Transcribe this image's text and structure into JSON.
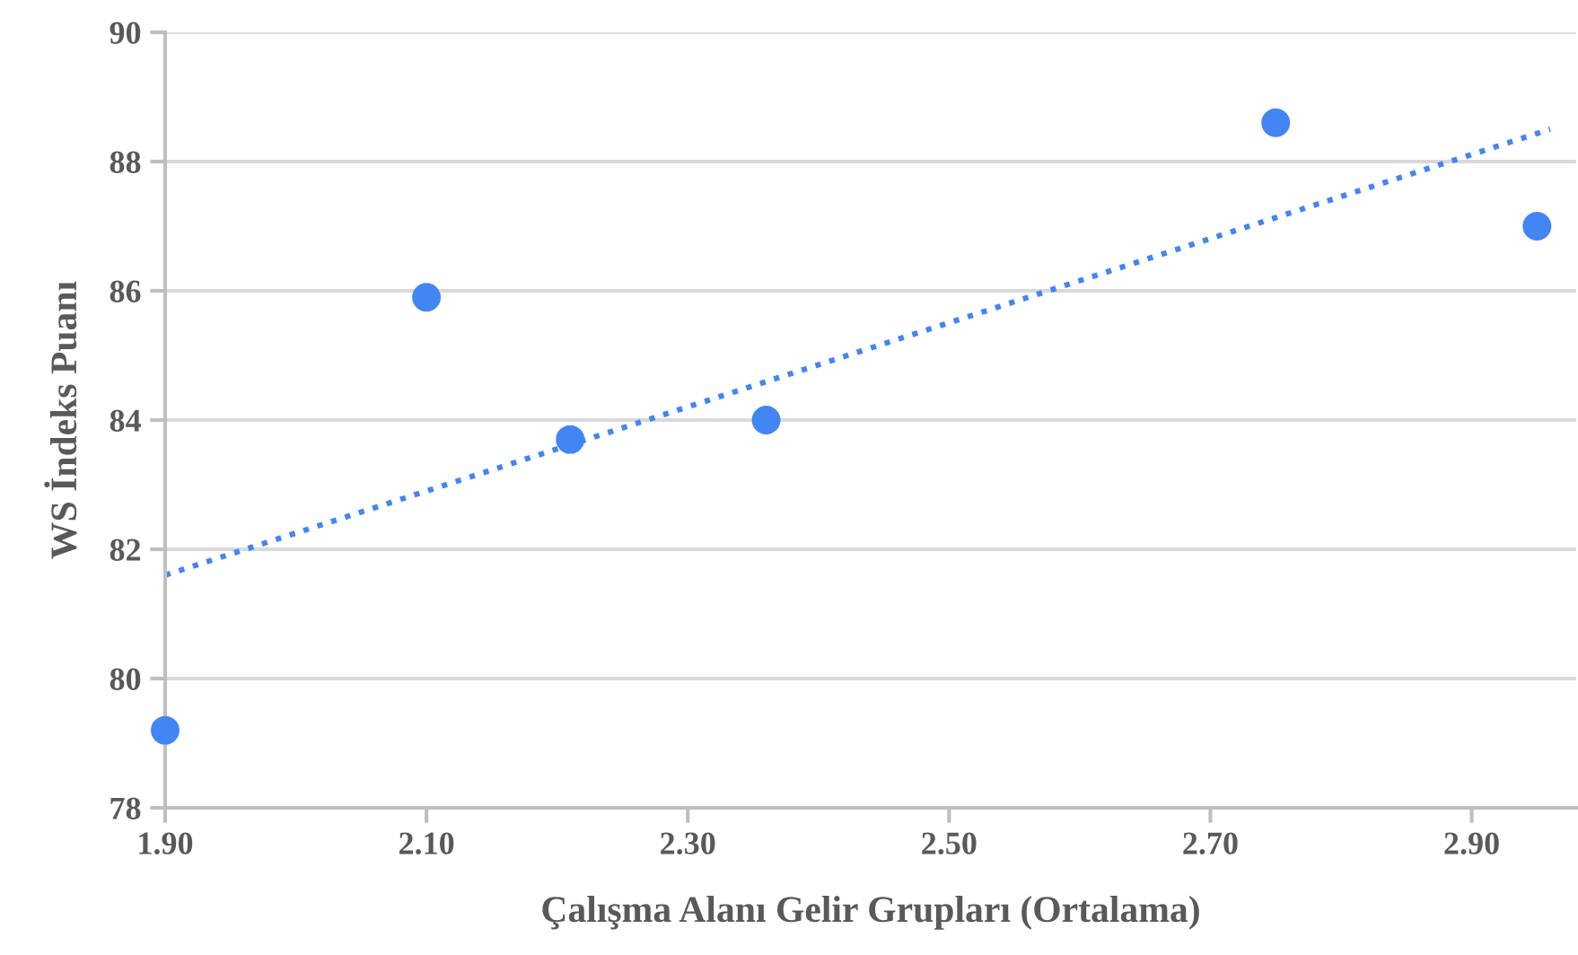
{
  "chart_data": {
    "type": "scatter",
    "xlabel": "Çalışma Alanı Gelir Grupları (Ortalama)",
    "ylabel": "WS İndeks Puanı",
    "series": [
      {
        "color": "#4285f4",
        "x": [
          1.9,
          2.1,
          2.21,
          2.36,
          2.75,
          2.95
        ],
        "values": [
          79.2,
          85.9,
          83.7,
          84.0,
          88.6,
          87.0
        ],
        "marker": "circle"
      },
      {
        "type": "line",
        "color": "#4285f4",
        "x": [
          1.9,
          2.96
        ],
        "values": [
          81.6,
          88.5
        ],
        "line_style": "dotted",
        "marker": "none"
      }
    ],
    "xlim": [
      1.9,
      2.98
    ],
    "xticks": [
      {
        "value": 1.9,
        "label": "1.90"
      },
      {
        "value": 2.1,
        "label": "2.10"
      },
      {
        "value": 2.3,
        "label": "2.30"
      },
      {
        "value": 2.5,
        "label": "2.50"
      },
      {
        "value": 2.7,
        "label": "2.70"
      },
      {
        "value": 2.9,
        "label": "2.90"
      }
    ],
    "ylim": [
      78,
      90
    ],
    "yticks": [
      78,
      80,
      82,
      84,
      86,
      88,
      90
    ],
    "grid": "y",
    "legend": false
  }
}
